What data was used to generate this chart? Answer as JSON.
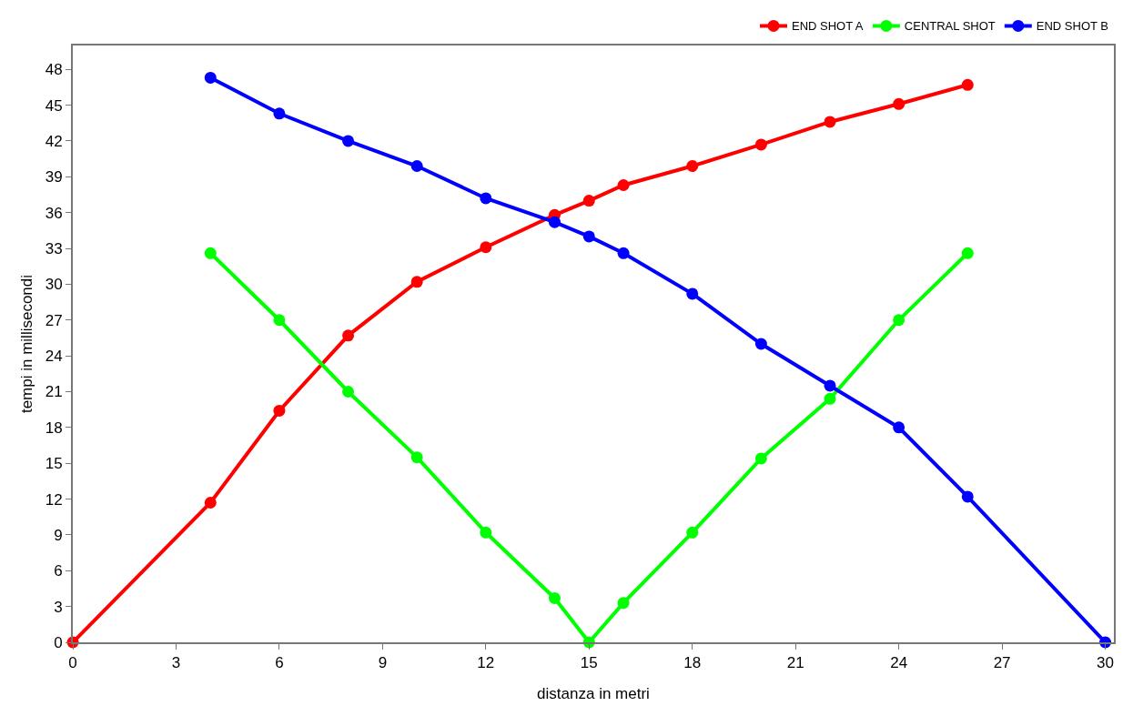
{
  "chart_data": {
    "type": "line",
    "xlabel": "distanza in metri",
    "ylabel": "tempi in millisecondi",
    "xlim": [
      0,
      30.25
    ],
    "ylim": [
      0,
      50
    ],
    "xticks": [
      0,
      3,
      6,
      9,
      12,
      15,
      18,
      21,
      24,
      27,
      30
    ],
    "yticks": [
      0,
      3,
      6,
      9,
      12,
      15,
      18,
      21,
      24,
      27,
      30,
      33,
      36,
      39,
      42,
      45,
      48
    ],
    "grid": false,
    "legend": "top right",
    "marker": "circle",
    "line_style": "solid",
    "series": [
      {
        "name": "END SHOT A",
        "color": "#ff0000",
        "x": [
          0,
          4,
          6,
          8,
          10,
          12,
          14,
          15,
          16,
          18,
          20,
          22,
          24,
          26
        ],
        "values": [
          0,
          11.7,
          19.4,
          25.7,
          30.2,
          33.1,
          35.8,
          37.0,
          38.3,
          39.9,
          41.7,
          43.6,
          45.1,
          46.7
        ]
      },
      {
        "name": "CENTRAL SHOT",
        "color": "#00ff00",
        "x": [
          4,
          6,
          8,
          10,
          12,
          14,
          15,
          16,
          18,
          20,
          22,
          24,
          26
        ],
        "values": [
          32.6,
          27.0,
          21.0,
          15.5,
          9.2,
          3.7,
          0,
          3.3,
          9.2,
          15.4,
          20.4,
          27.0,
          32.6
        ]
      },
      {
        "name": "END SHOT B",
        "color": "#0000ff",
        "x": [
          4,
          6,
          8,
          10,
          12,
          14,
          15,
          16,
          18,
          20,
          22,
          24,
          26,
          30
        ],
        "values": [
          47.3,
          44.3,
          42.0,
          39.9,
          37.2,
          35.2,
          34.0,
          32.6,
          29.2,
          25.0,
          21.5,
          18.0,
          12.2,
          0
        ]
      }
    ]
  }
}
